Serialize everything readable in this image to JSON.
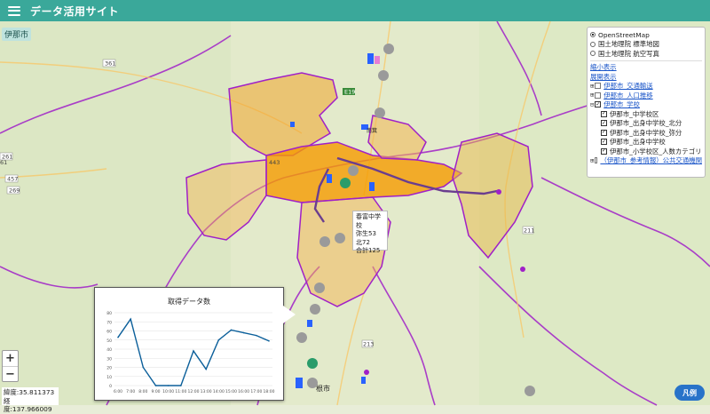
{
  "app": {
    "title": "データ活用サイト"
  },
  "map": {
    "city_badge": "伊那市",
    "labels": {
      "route_361": "361",
      "route_457": "457",
      "route_269": "269",
      "route_261": "261",
      "route_211": "211",
      "route_213": "213",
      "road_e19": "E19",
      "road_443": "443",
      "partial_61": "61",
      "town_1": "根市",
      "town_2": "南箕"
    },
    "colors": {
      "district": "#f5a623",
      "boundary": "#a020c8",
      "route": "#6a3d8f"
    }
  },
  "layers": {
    "base_maps": [
      {
        "label": "OpenStreetMap",
        "selected": true
      },
      {
        "label": "国土地理院 標準地図",
        "selected": false
      },
      {
        "label": "国土地理院 航空写真",
        "selected": false
      }
    ],
    "collapse_all": "縮小表示",
    "expand_all": "展開表示",
    "groups": [
      {
        "toggle": "⊞",
        "checked": false,
        "label": "伊那市_交通輸送",
        "link": true
      },
      {
        "toggle": "⊞",
        "checked": false,
        "label": "伊那市_人口推移",
        "link": true
      },
      {
        "toggle": "⊟",
        "checked": true,
        "label": "伊那市_学校",
        "link": true
      }
    ],
    "sub_items": [
      {
        "checked": true,
        "label": "伊那市_中学校区"
      },
      {
        "checked": true,
        "label": "伊那市_出身中学校_北分"
      },
      {
        "checked": true,
        "label": "伊那市_出身中学校_弥分"
      },
      {
        "checked": true,
        "label": "伊那市_出身中学校"
      },
      {
        "checked": true,
        "label": "伊那市_小学校区_人数カテゴリ"
      }
    ],
    "last_group": {
      "toggle": "⊞",
      "checked": false,
      "label": "（伊那市_参考情報）公共交通機関"
    }
  },
  "popup": {
    "line1": "春富中学校",
    "line2": "弥生53",
    "line3": "北72",
    "line4": "合計125"
  },
  "chart_data": {
    "type": "line",
    "title": "取得データ数",
    "categories": [
      "6:00",
      "7:00",
      "8:00",
      "9:00",
      "10:00",
      "11:00",
      "12:00",
      "13:00",
      "14:00",
      "15:00",
      "16:00",
      "17:00",
      "18:00"
    ],
    "series": [
      {
        "values": [
          53,
          73,
          20,
          0,
          0,
          0,
          38,
          18,
          50,
          61,
          58,
          55,
          49
        ]
      }
    ],
    "yticks": [
      "0",
      "10",
      "20",
      "30",
      "40",
      "50",
      "60",
      "70",
      "80"
    ],
    "ylim": [
      0,
      80
    ],
    "line_color": "#0b5f9a"
  },
  "zoom": {
    "in": "+",
    "out": "−"
  },
  "coords": {
    "lat": "緯度:35.811373",
    "lng": "経度:137.966009"
  },
  "legend_button": "凡例"
}
